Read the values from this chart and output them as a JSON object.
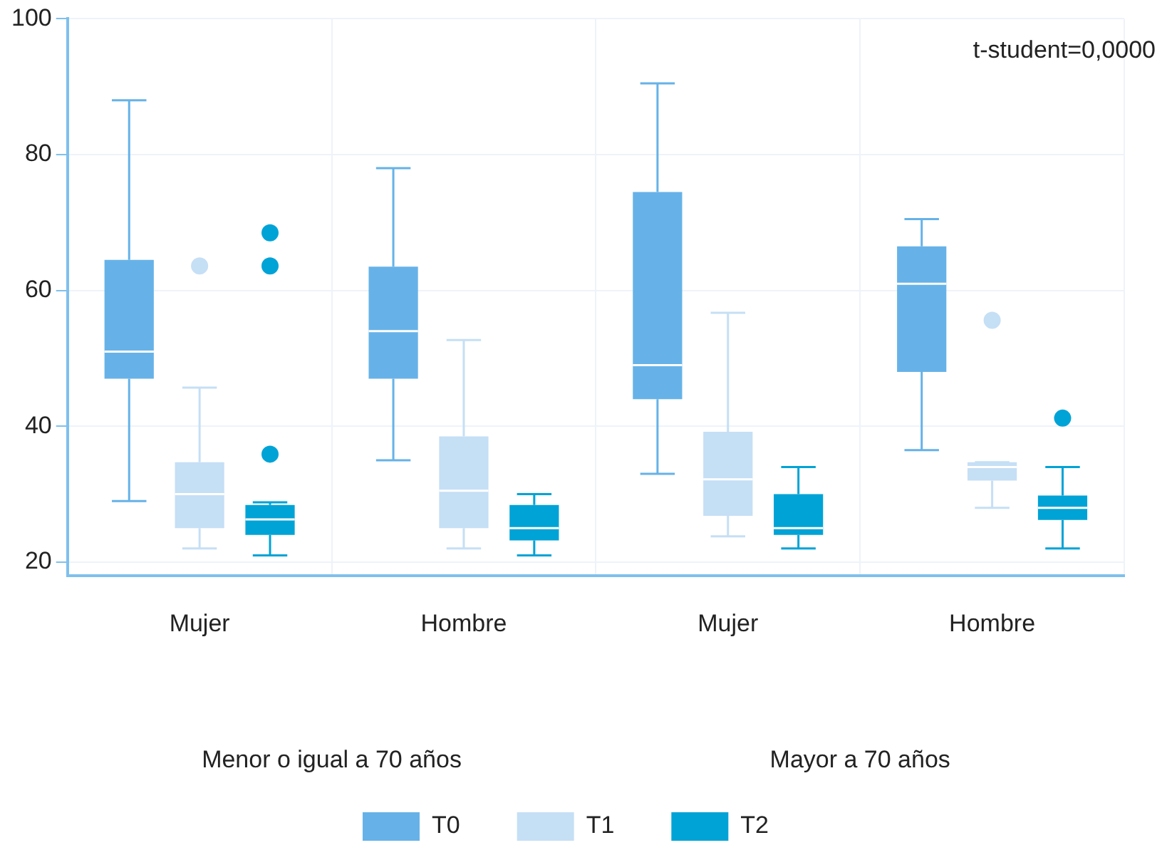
{
  "chart_data": {
    "type": "box",
    "categories": [
      "Mujer",
      "Hombre",
      "Mujer",
      "Hombre"
    ],
    "series": [
      {
        "name": "T0",
        "color": "#66b2e8",
        "boxes": [
          {
            "low": 29,
            "q1": 47,
            "median": 51,
            "q3": 64.5,
            "high": 88
          },
          {
            "low": 35,
            "q1": 47,
            "median": 54,
            "q3": 63.5,
            "high": 78
          },
          {
            "low": 33,
            "q1": 44,
            "median": 49,
            "q3": 74.5,
            "high": 90.5
          },
          {
            "low": 36.5,
            "q1": 48,
            "median": 61,
            "q3": 66.5,
            "high": 70.5
          }
        ]
      },
      {
        "name": "T1",
        "color": "#c5dff5",
        "boxes": [
          {
            "low": 22,
            "q1": 25,
            "median": 30,
            "q3": 34.7,
            "high": 45.7,
            "outliers": [
              63.6
            ]
          },
          {
            "low": 22,
            "q1": 25,
            "median": 30.5,
            "q3": 38.5,
            "high": 52.7
          },
          {
            "low": 23.8,
            "q1": 26.8,
            "median": 32.2,
            "q3": 39.2,
            "high": 56.7
          },
          {
            "low": 28,
            "q1": 32,
            "median": 34,
            "q3": 34.7,
            "high": 34.7,
            "outliers": [
              55.6
            ]
          }
        ]
      },
      {
        "name": "T2",
        "color": "#00a3d6",
        "boxes": [
          {
            "low": 21,
            "q1": 24,
            "median": 26.3,
            "q3": 28.4,
            "high": 28.8,
            "outliers": [
              68.5,
              63.6,
              35.9
            ]
          },
          {
            "low": 21,
            "q1": 23.2,
            "median": 25,
            "q3": 28.4,
            "high": 30
          },
          {
            "low": 22,
            "q1": 24,
            "median": 25,
            "q3": 30,
            "high": 34
          },
          {
            "low": 22,
            "q1": 26.2,
            "median": 28,
            "q3": 29.8,
            "high": 34,
            "outliers": [
              41.2
            ]
          }
        ]
      }
    ],
    "ylim": [
      18,
      100
    ],
    "yticks": [
      20,
      40,
      60,
      80,
      100
    ],
    "grid": true,
    "legend": "bottom",
    "annotations": [
      "Menor o igual a 70 años",
      "Mayor a 70 años",
      "t-student=0,0000"
    ]
  }
}
